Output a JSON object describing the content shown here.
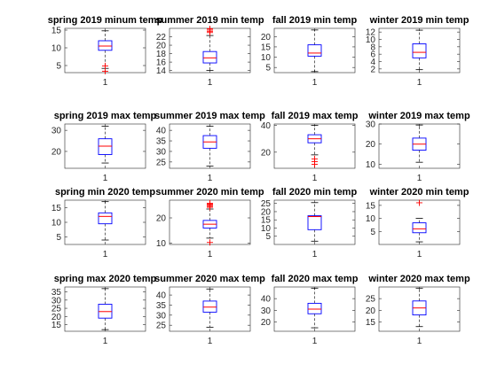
{
  "chart_data": [
    {
      "type": "box",
      "title": "spring 2019 minum temp",
      "categories": [
        "1"
      ],
      "ylim": [
        3,
        15.5
      ],
      "yticks": [
        5,
        10,
        15
      ],
      "box": {
        "whisker_low": 4.2,
        "q1": 9.3,
        "median": 10.5,
        "q3": 12,
        "whisker_high": 14.8,
        "outliers": [
          3.4,
          4.9
        ]
      }
    },
    {
      "type": "box",
      "title": "summer 2019 min temp",
      "categories": [
        "1"
      ],
      "ylim": [
        13.5,
        24
      ],
      "yticks": [
        14,
        16,
        18,
        20,
        22
      ],
      "box": {
        "whisker_low": 14,
        "q1": 15.8,
        "median": 17,
        "q3": 18.5,
        "whisker_high": 22.3,
        "outliers": [
          23,
          23.3,
          23.6,
          23.9
        ]
      }
    },
    {
      "type": "box",
      "title": "fall 2019 min temp",
      "categories": [
        "1"
      ],
      "ylim": [
        2.5,
        24
      ],
      "yticks": [
        5,
        10,
        15,
        20
      ],
      "box": {
        "whisker_low": 3,
        "q1": 10.5,
        "median": 12,
        "q3": 16,
        "whisker_high": 23.2,
        "outliers": []
      }
    },
    {
      "type": "box",
      "title": "winter 2019 min temp",
      "categories": [
        "1"
      ],
      "ylim": [
        1,
        13
      ],
      "yticks": [
        2,
        4,
        6,
        8,
        10,
        12
      ],
      "box": {
        "whisker_low": 1.8,
        "q1": 5,
        "median": 6.5,
        "q3": 8.8,
        "whisker_high": 12.5,
        "outliers": []
      }
    },
    {
      "type": "box",
      "title": "spring 2019 max temp",
      "categories": [
        "1"
      ],
      "ylim": [
        12,
        33
      ],
      "yticks": [
        20,
        30
      ],
      "box": {
        "whisker_low": 14.5,
        "q1": 18.5,
        "median": 22.5,
        "q3": 26,
        "whisker_high": 32,
        "outliers": []
      }
    },
    {
      "type": "box",
      "title": "summer 2019 max temp",
      "categories": [
        "1"
      ],
      "ylim": [
        22,
        43
      ],
      "yticks": [
        25,
        30,
        35,
        40
      ],
      "box": {
        "whisker_low": 23,
        "q1": 31.5,
        "median": 34.5,
        "q3": 37.5,
        "whisker_high": 42,
        "outliers": []
      }
    },
    {
      "type": "box",
      "title": "fall 2019 max temp",
      "categories": [
        "1"
      ],
      "ylim": [
        8,
        41
      ],
      "yticks": [
        20,
        40
      ],
      "box": {
        "whisker_low": 18,
        "q1": 27,
        "median": 30,
        "q3": 33,
        "whisker_high": 40,
        "outliers": [
          11,
          13,
          15
        ]
      }
    },
    {
      "type": "box",
      "title": "winter 2019 max temp",
      "categories": [
        "1"
      ],
      "ylim": [
        8,
        30
      ],
      "yticks": [
        10,
        20,
        30
      ],
      "box": {
        "whisker_low": 11,
        "q1": 17,
        "median": 20,
        "q3": 23,
        "whisker_high": 29.5,
        "outliers": []
      }
    },
    {
      "type": "box",
      "title": "spring min 2020 temp",
      "categories": [
        "1"
      ],
      "ylim": [
        2.5,
        17.5
      ],
      "yticks": [
        5,
        10,
        15
      ],
      "box": {
        "whisker_low": 4,
        "q1": 9.5,
        "median": 12,
        "q3": 13.2,
        "whisker_high": 17,
        "outliers": []
      }
    },
    {
      "type": "box",
      "title": "summer 2020 min temp",
      "categories": [
        "1"
      ],
      "ylim": [
        9.5,
        27
      ],
      "yticks": [
        10,
        20
      ],
      "box": {
        "whisker_low": 12,
        "q1": 16,
        "median": 17.5,
        "q3": 19,
        "whisker_high": 23.5,
        "outliers": [
          10.3,
          24.2,
          24.6,
          25,
          25.4,
          25.8
        ]
      }
    },
    {
      "type": "box",
      "title": "fall 2020 min temp",
      "categories": [
        "1"
      ],
      "ylim": [
        0,
        27
      ],
      "yticks": [
        5,
        10,
        15,
        20,
        25
      ],
      "box": {
        "whisker_low": 2,
        "q1": 9,
        "median": 17,
        "q3": 17.5,
        "whisker_high": 25.5,
        "outliers": []
      }
    },
    {
      "type": "box",
      "title": "winter 2020 min temp",
      "categories": [
        "1"
      ],
      "ylim": [
        0,
        17
      ],
      "yticks": [
        5,
        10,
        15
      ],
      "box": {
        "whisker_low": 1,
        "q1": 4.5,
        "median": 6,
        "q3": 8.3,
        "whisker_high": 10,
        "outliers": [
          16
        ]
      }
    },
    {
      "type": "box",
      "title": "spring max 2020 temp",
      "categories": [
        "1"
      ],
      "ylim": [
        11,
        38
      ],
      "yticks": [
        15,
        20,
        25,
        30,
        35
      ],
      "box": {
        "whisker_low": 12,
        "q1": 19,
        "median": 23,
        "q3": 27.5,
        "whisker_high": 37,
        "outliers": []
      }
    },
    {
      "type": "box",
      "title": "summer 2020 max temp",
      "categories": [
        "1"
      ],
      "ylim": [
        22,
        44
      ],
      "yticks": [
        25,
        30,
        35,
        40
      ],
      "box": {
        "whisker_low": 24,
        "q1": 31.5,
        "median": 34,
        "q3": 37,
        "whisker_high": 43,
        "outliers": []
      }
    },
    {
      "type": "box",
      "title": "fall 2020 max temp",
      "categories": [
        "1"
      ],
      "ylim": [
        12,
        50
      ],
      "yticks": [
        20,
        30,
        40
      ],
      "box": {
        "whisker_low": 15,
        "q1": 27,
        "median": 31,
        "q3": 36,
        "whisker_high": 49,
        "outliers": []
      }
    },
    {
      "type": "box",
      "title": "winter 2020 max temp",
      "categories": [
        "1"
      ],
      "ylim": [
        11,
        30
      ],
      "yticks": [
        15,
        20,
        25
      ],
      "box": {
        "whisker_low": 13,
        "q1": 18,
        "median": 21,
        "q3": 24,
        "whisker_high": 29.5,
        "outliers": []
      }
    }
  ]
}
